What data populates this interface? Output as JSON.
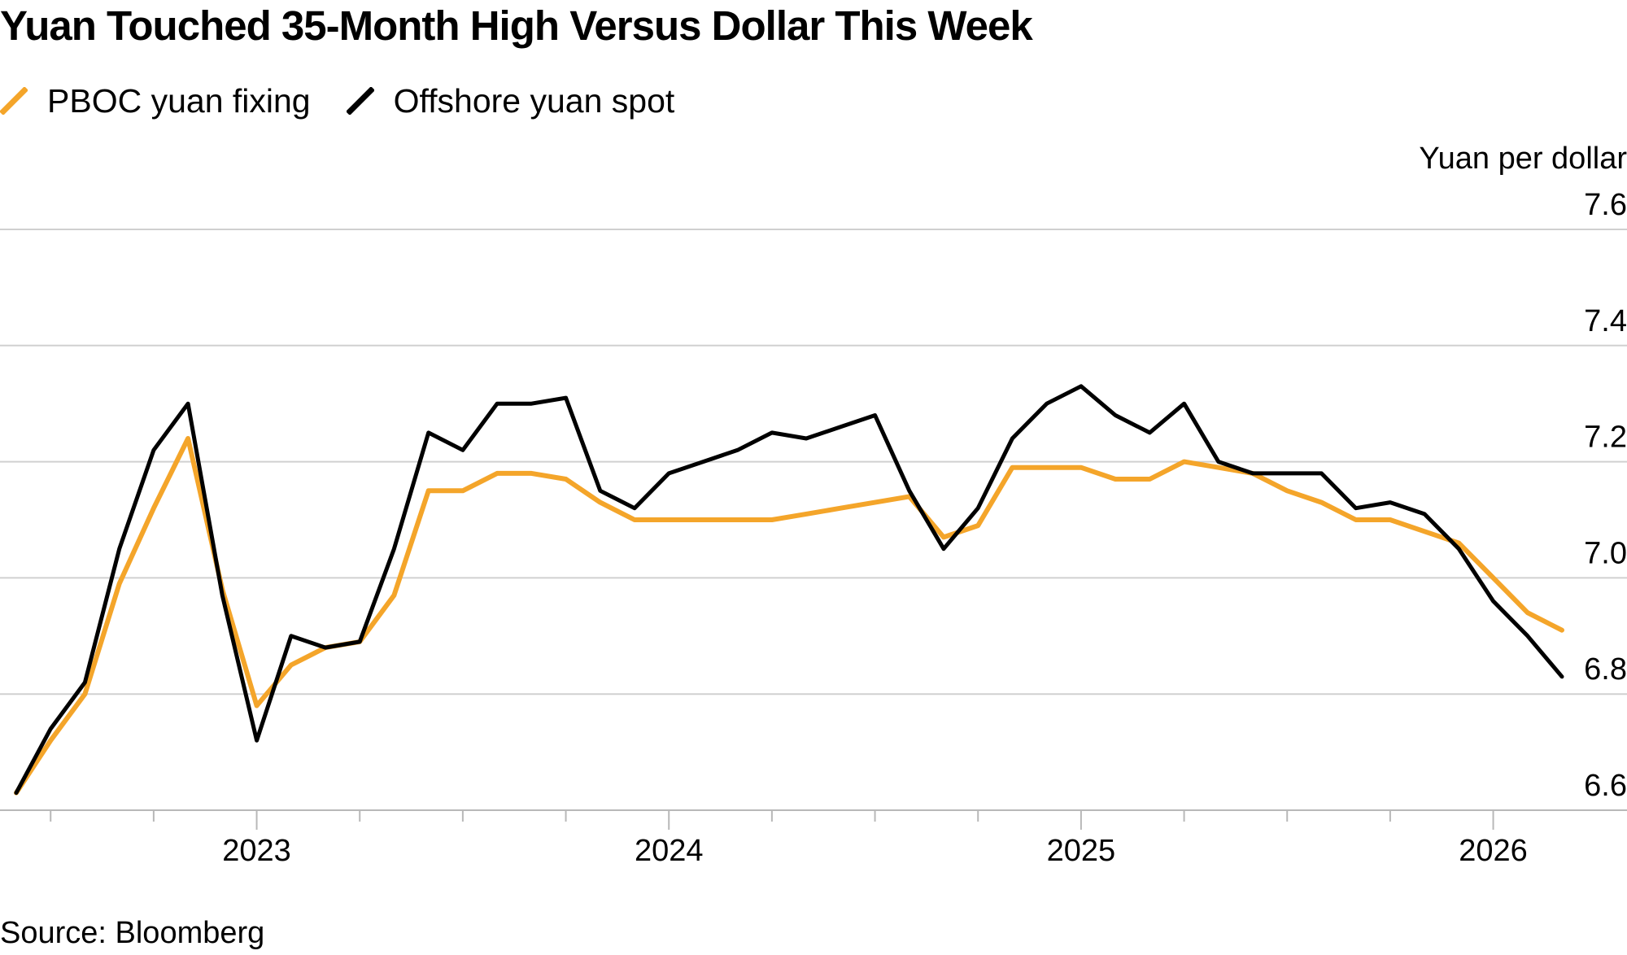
{
  "chart_data": {
    "type": "line",
    "title": "Yuan Touched 35-Month High Versus Dollar This Week",
    "ylabel": "Yuan per dollar",
    "ylim": [
      6.6,
      7.6
    ],
    "yticks": [
      "7.6",
      "7.4",
      "7.2",
      "7.0",
      "6.8",
      "6.6"
    ],
    "xticks": [
      "2023",
      "2024",
      "2025",
      "2026"
    ],
    "xrange": [
      "2022-06",
      "2026-03"
    ],
    "grid": "horizontal",
    "legend_position": "top-left",
    "source": "Source: Bloomberg",
    "series": [
      {
        "name": "PBOC yuan fixing",
        "color": "#f4a52a",
        "points": [
          [
            "2022-06",
            6.63
          ],
          [
            "2022-07",
            6.72
          ],
          [
            "2022-08",
            6.8
          ],
          [
            "2022-09",
            6.99
          ],
          [
            "2022-10",
            7.12
          ],
          [
            "2022-11",
            7.24
          ],
          [
            "2022-12",
            6.98
          ],
          [
            "2023-01",
            6.78
          ],
          [
            "2023-02",
            6.85
          ],
          [
            "2023-03",
            6.88
          ],
          [
            "2023-04",
            6.89
          ],
          [
            "2023-05",
            6.97
          ],
          [
            "2023-06",
            7.15
          ],
          [
            "2023-07",
            7.15
          ],
          [
            "2023-08",
            7.18
          ],
          [
            "2023-09",
            7.18
          ],
          [
            "2023-10",
            7.17
          ],
          [
            "2023-11",
            7.13
          ],
          [
            "2023-12",
            7.1
          ],
          [
            "2024-01",
            7.1
          ],
          [
            "2024-02",
            7.1
          ],
          [
            "2024-03",
            7.1
          ],
          [
            "2024-04",
            7.1
          ],
          [
            "2024-05",
            7.11
          ],
          [
            "2024-06",
            7.12
          ],
          [
            "2024-07",
            7.13
          ],
          [
            "2024-08",
            7.14
          ],
          [
            "2024-09",
            7.07
          ],
          [
            "2024-10",
            7.09
          ],
          [
            "2024-11",
            7.19
          ],
          [
            "2024-12",
            7.19
          ],
          [
            "2025-01",
            7.19
          ],
          [
            "2025-02",
            7.17
          ],
          [
            "2025-03",
            7.17
          ],
          [
            "2025-04",
            7.2
          ],
          [
            "2025-05",
            7.19
          ],
          [
            "2025-06",
            7.18
          ],
          [
            "2025-07",
            7.15
          ],
          [
            "2025-08",
            7.13
          ],
          [
            "2025-09",
            7.1
          ],
          [
            "2025-10",
            7.1
          ],
          [
            "2025-11",
            7.08
          ],
          [
            "2025-12",
            7.06
          ],
          [
            "2026-01",
            7.0
          ],
          [
            "2026-02",
            6.94
          ],
          [
            "2026-03",
            6.91
          ]
        ]
      },
      {
        "name": "Offshore yuan spot",
        "color": "#000000",
        "points": [
          [
            "2022-06",
            6.63
          ],
          [
            "2022-07",
            6.74
          ],
          [
            "2022-08",
            6.82
          ],
          [
            "2022-09",
            7.05
          ],
          [
            "2022-10",
            7.22
          ],
          [
            "2022-11",
            7.3
          ],
          [
            "2022-12",
            6.97
          ],
          [
            "2023-01",
            6.72
          ],
          [
            "2023-02",
            6.9
          ],
          [
            "2023-03",
            6.88
          ],
          [
            "2023-04",
            6.89
          ],
          [
            "2023-05",
            7.05
          ],
          [
            "2023-06",
            7.25
          ],
          [
            "2023-07",
            7.22
          ],
          [
            "2023-08",
            7.3
          ],
          [
            "2023-09",
            7.3
          ],
          [
            "2023-10",
            7.31
          ],
          [
            "2023-11",
            7.15
          ],
          [
            "2023-12",
            7.12
          ],
          [
            "2024-01",
            7.18
          ],
          [
            "2024-02",
            7.2
          ],
          [
            "2024-03",
            7.22
          ],
          [
            "2024-04",
            7.25
          ],
          [
            "2024-05",
            7.24
          ],
          [
            "2024-06",
            7.26
          ],
          [
            "2024-07",
            7.28
          ],
          [
            "2024-08",
            7.15
          ],
          [
            "2024-09",
            7.05
          ],
          [
            "2024-10",
            7.12
          ],
          [
            "2024-11",
            7.24
          ],
          [
            "2024-12",
            7.3
          ],
          [
            "2025-01",
            7.33
          ],
          [
            "2025-02",
            7.28
          ],
          [
            "2025-03",
            7.25
          ],
          [
            "2025-04",
            7.3
          ],
          [
            "2025-05",
            7.2
          ],
          [
            "2025-06",
            7.18
          ],
          [
            "2025-07",
            7.18
          ],
          [
            "2025-08",
            7.18
          ],
          [
            "2025-09",
            7.12
          ],
          [
            "2025-10",
            7.13
          ],
          [
            "2025-11",
            7.11
          ],
          [
            "2025-12",
            7.05
          ],
          [
            "2026-01",
            6.96
          ],
          [
            "2026-02",
            6.9
          ],
          [
            "2026-03",
            6.83
          ]
        ]
      }
    ]
  }
}
